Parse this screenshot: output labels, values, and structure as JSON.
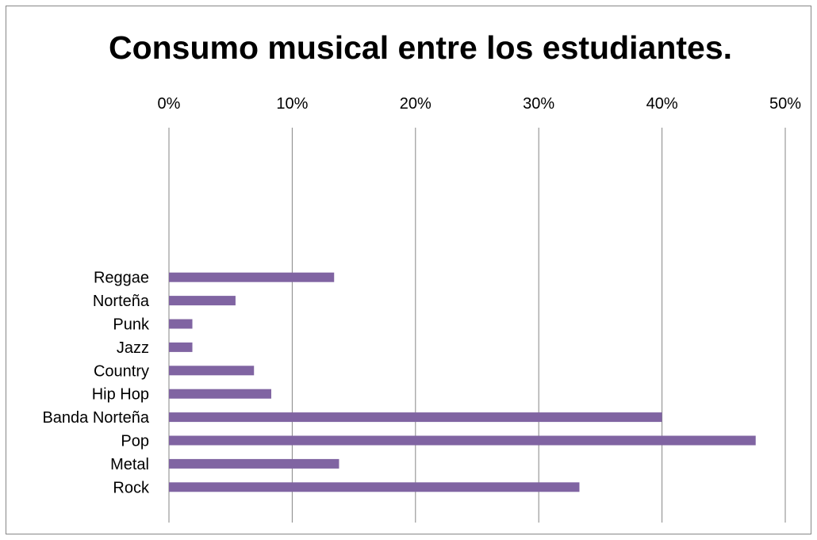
{
  "chart_data": {
    "type": "bar",
    "orientation": "horizontal",
    "title": "Consumo musical entre los estudiantes.",
    "xlabel": "",
    "ylabel": "",
    "categories": [
      "Rock",
      "Metal",
      "Pop",
      "Banda Norteña",
      "Hip Hop",
      "Country",
      "Jazz",
      "Punk",
      "Norteña",
      "Reggae"
    ],
    "values": [
      33.3,
      13.8,
      47.6,
      40.0,
      8.3,
      6.9,
      1.9,
      1.9,
      5.4,
      13.4
    ],
    "xlim": [
      0,
      50
    ],
    "ticks": [
      "0%",
      "10%",
      "20%",
      "30%",
      "40%",
      "50%"
    ],
    "x_axis_position": "top",
    "grid": true,
    "legend": "none",
    "bar_color": "#8064A2"
  }
}
